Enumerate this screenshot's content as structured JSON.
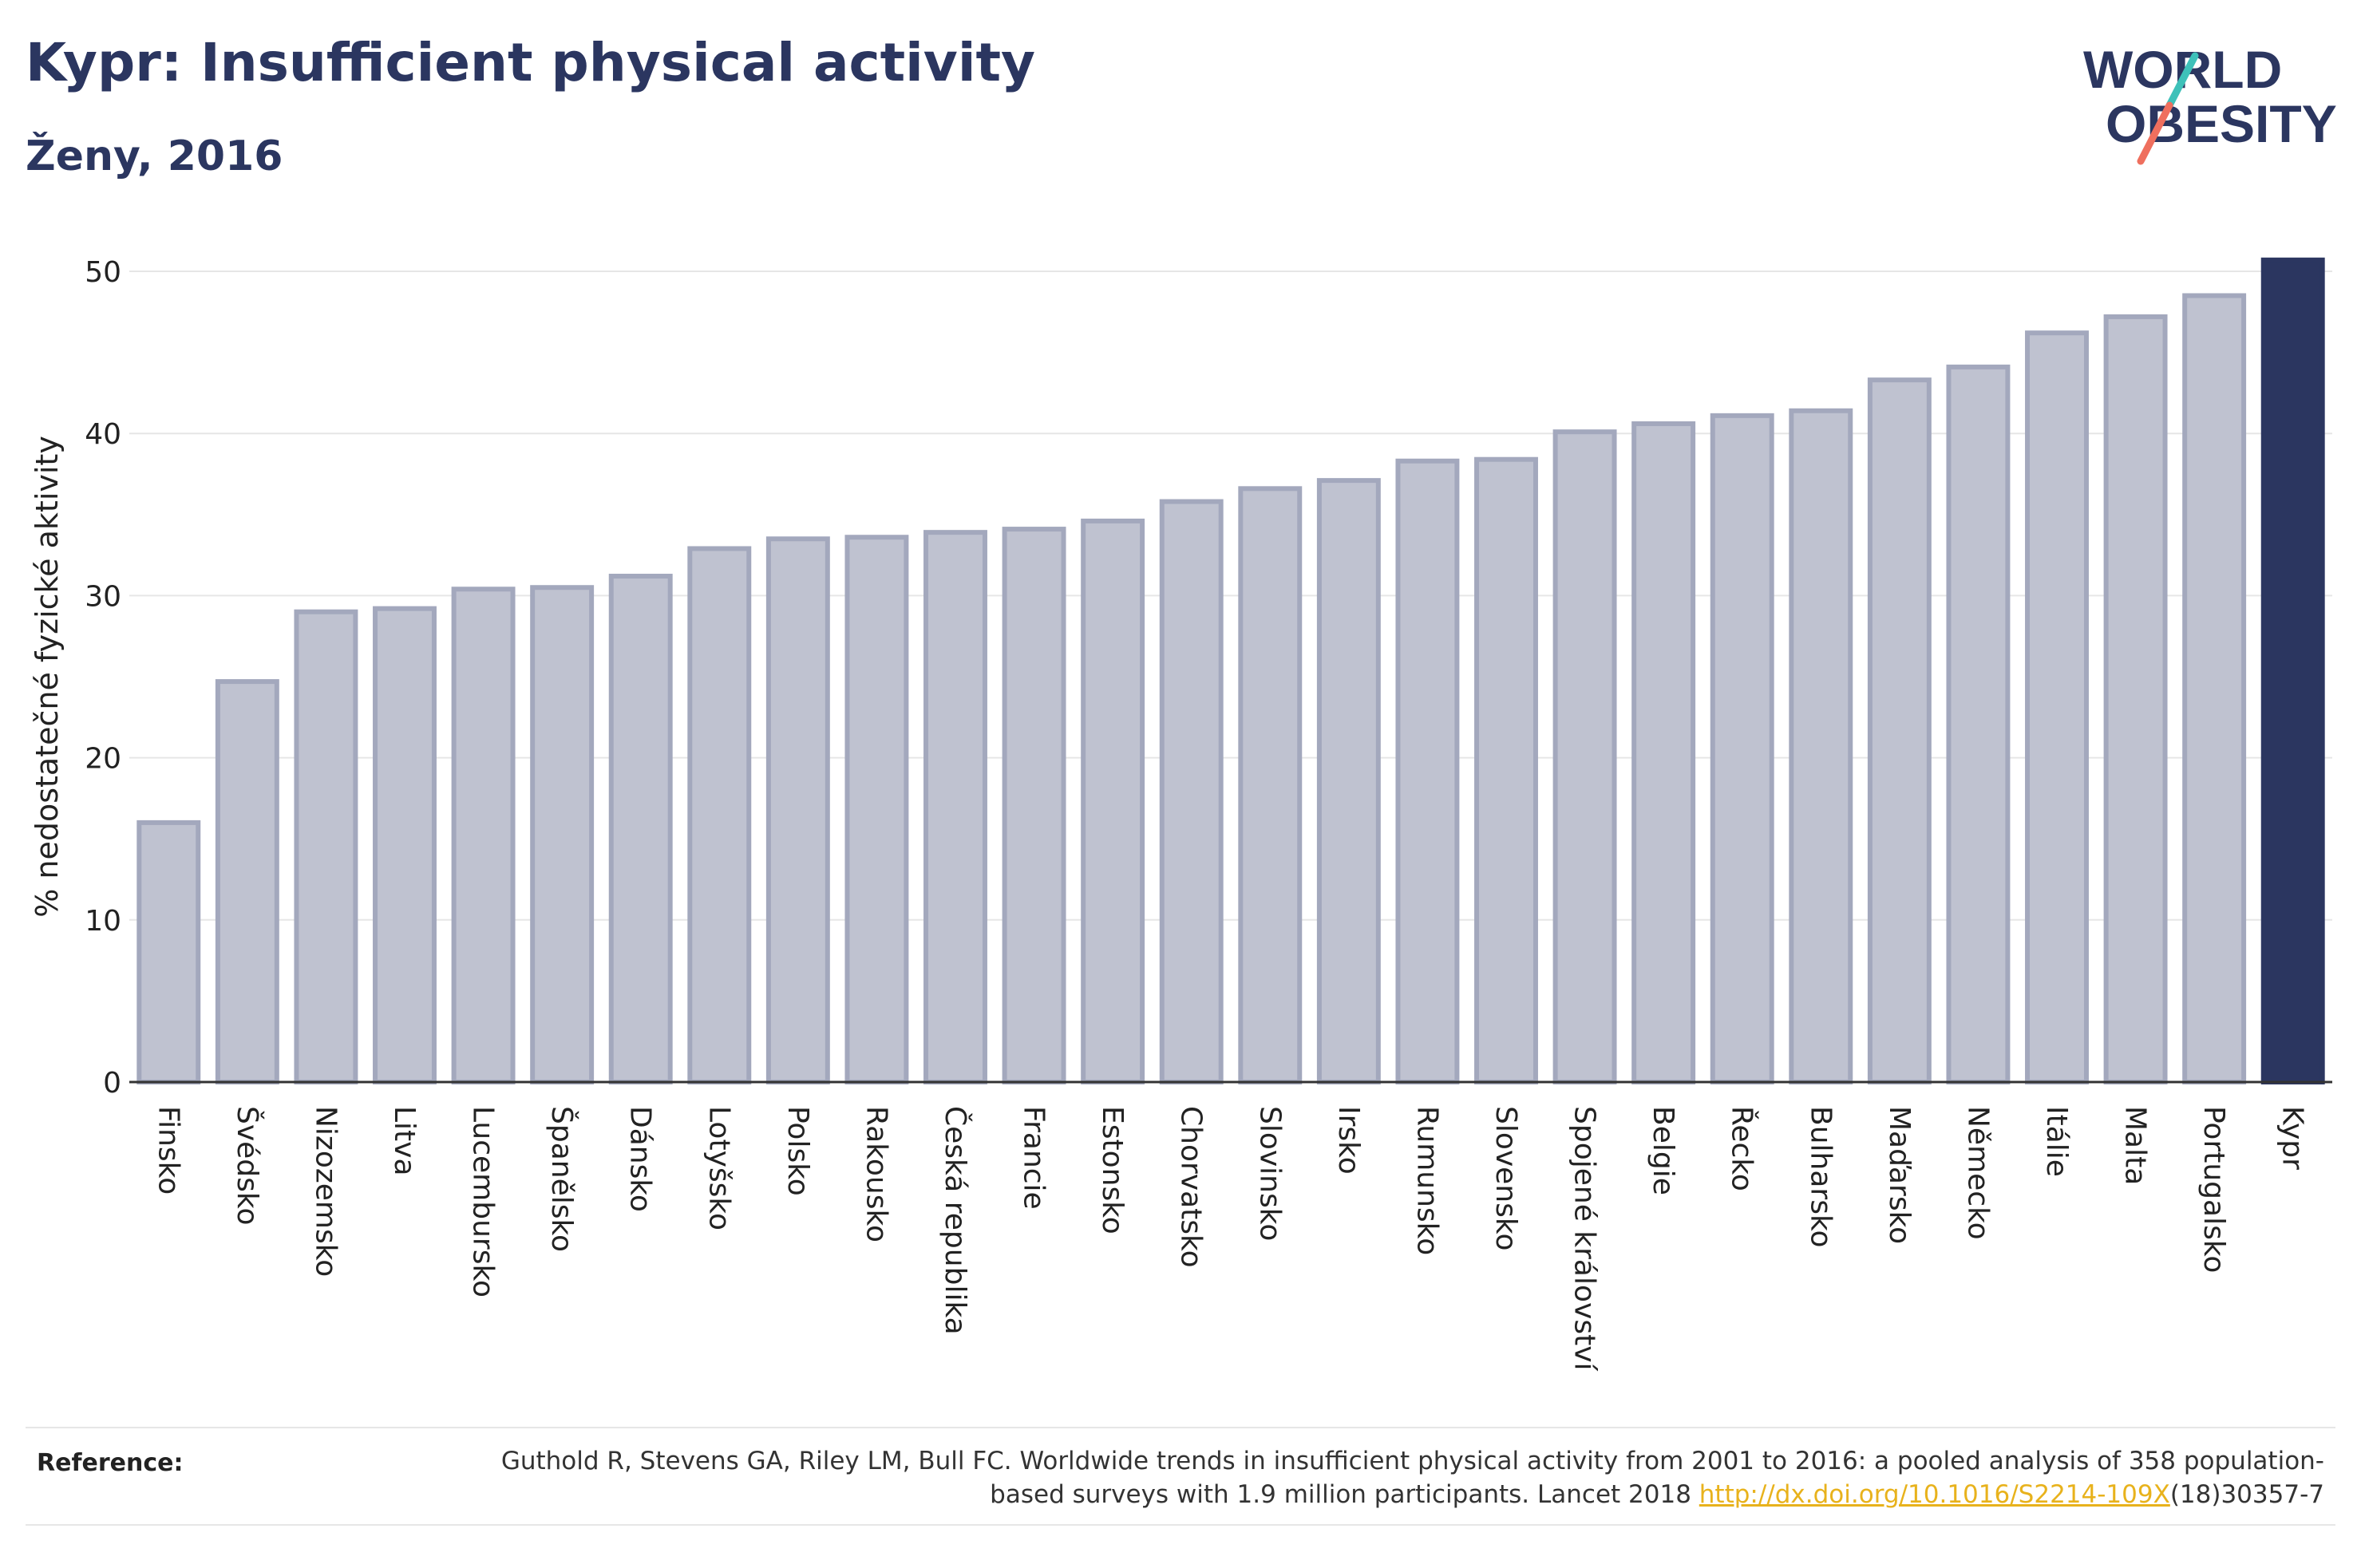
{
  "header": {
    "title": "Kypr: Insufficient physical activity",
    "subtitle": "Ženy, 2016"
  },
  "logo": {
    "line1": "WORLD",
    "line2": "OBESITY",
    "colors": {
      "text": "#2b3660",
      "slash_teal": "#3ec1b9",
      "slash_coral": "#ef6f5e"
    }
  },
  "chart_data": {
    "type": "bar",
    "title": "Kypr: Insufficient physical activity",
    "subtitle": "Ženy, 2016",
    "xlabel": "",
    "ylabel": "% nedostatečné fyzické aktivity",
    "ylim": [
      0,
      50
    ],
    "yticks": [
      0,
      10,
      20,
      30,
      40,
      50
    ],
    "grid": true,
    "legend": "none",
    "highlight": "Kypr",
    "colors": {
      "bar": "#bfc2d0",
      "bar_border": "#a3a8bd",
      "highlight": "#2b3660",
      "grid": "#e6e6e6"
    },
    "categories": [
      "Finsko",
      "Švédsko",
      "Nizozemsko",
      "Litva",
      "Lucembursko",
      "Španělsko",
      "Dánsko",
      "Lotyšsko",
      "Polsko",
      "Rakousko",
      "Česká republika",
      "Francie",
      "Estonsko",
      "Chorvatsko",
      "Slovinsko",
      "Irsko",
      "Rumunsko",
      "Slovensko",
      "Spojené království",
      "Belgie",
      "Řecko",
      "Bulharsko",
      "Maďarsko",
      "Německo",
      "Itálie",
      "Malta",
      "Portugalsko",
      "Kypr"
    ],
    "values": [
      16.0,
      24.7,
      29.0,
      29.2,
      30.4,
      30.5,
      31.2,
      32.9,
      33.5,
      33.6,
      33.9,
      34.1,
      34.6,
      35.8,
      36.6,
      37.1,
      38.3,
      38.4,
      40.1,
      40.6,
      41.1,
      41.4,
      43.3,
      44.1,
      46.2,
      47.2,
      48.5,
      50.7
    ]
  },
  "footer": {
    "reference_label": "Reference:",
    "reference_text_before": "Guthold R, Stevens GA, Riley LM, Bull FC. Worldwide trends in insufficient physical activity from 2001 to 2016: a pooled analysis of 358 population-based surveys with 1.9 million participants. Lancet 2018 ",
    "reference_link": "http://dx.doi.org/10.1016/S2214-109X",
    "reference_text_after": "(18)30357-7"
  }
}
